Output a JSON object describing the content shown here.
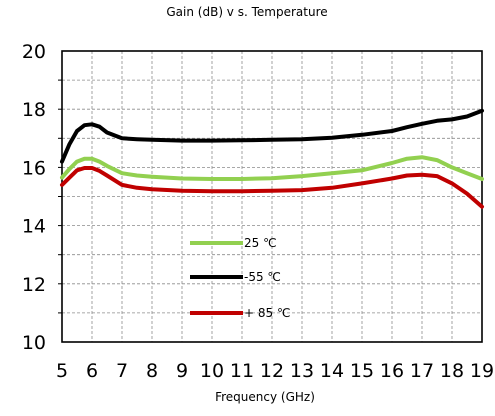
{
  "chart_data": {
    "type": "line",
    "title": "Gain (dB) v s. Temperature",
    "xlabel": "Frequency (GHz)",
    "ylabel": "",
    "xlim": [
      5,
      19
    ],
    "ylim": [
      10,
      20
    ],
    "x_ticks": [
      "5",
      "6",
      "7",
      "8",
      "9",
      "10",
      "11",
      "12",
      "13",
      "14",
      "15",
      "16",
      "17",
      "18",
      "19"
    ],
    "y_ticks": [
      "10",
      "12",
      "14",
      "16",
      "18",
      "20"
    ],
    "grid": true,
    "legend_position": "center-left",
    "x": [
      5,
      5.25,
      5.5,
      5.75,
      6,
      6.25,
      6.5,
      7,
      7.5,
      8,
      9,
      10,
      11,
      12,
      13,
      14,
      15,
      16,
      16.5,
      17,
      17.5,
      18,
      18.5,
      19
    ],
    "series": [
      {
        "name": "25 ℃",
        "color": "#92d050",
        "values": [
          15.65,
          15.95,
          16.2,
          16.3,
          16.3,
          16.2,
          16.05,
          15.8,
          15.72,
          15.68,
          15.62,
          15.6,
          15.6,
          15.63,
          15.7,
          15.8,
          15.9,
          16.15,
          16.3,
          16.35,
          16.25,
          16.0,
          15.8,
          15.6
        ]
      },
      {
        "name": "-55 ℃",
        "color": "#000000",
        "values": [
          16.2,
          16.8,
          17.25,
          17.45,
          17.48,
          17.4,
          17.2,
          17.0,
          16.97,
          16.95,
          16.92,
          16.92,
          16.93,
          16.95,
          16.97,
          17.02,
          17.12,
          17.25,
          17.38,
          17.5,
          17.6,
          17.65,
          17.75,
          17.95
        ]
      },
      {
        "name": "+ 85 ℃",
        "color": "#c00000",
        "values": [
          15.4,
          15.65,
          15.9,
          15.98,
          15.98,
          15.88,
          15.72,
          15.4,
          15.3,
          15.25,
          15.2,
          15.18,
          15.18,
          15.2,
          15.22,
          15.3,
          15.45,
          15.62,
          15.72,
          15.75,
          15.7,
          15.45,
          15.1,
          14.65
        ]
      }
    ]
  }
}
